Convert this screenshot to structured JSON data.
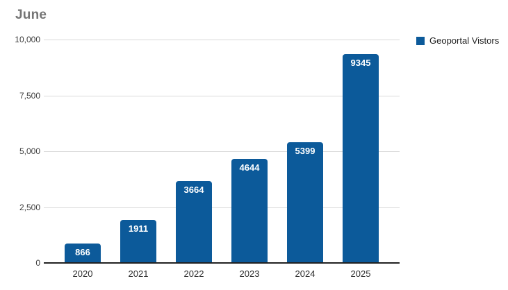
{
  "chart": {
    "title": "June",
    "legend": {
      "label": "Geoportal Vistors",
      "swatch_color": "#0c5a9a"
    }
  },
  "chart_data": {
    "type": "bar",
    "title": "June",
    "categories": [
      "2020",
      "2021",
      "2022",
      "2023",
      "2024",
      "2025"
    ],
    "series": [
      {
        "name": "Geoportal Vistors",
        "values": [
          866,
          1911,
          3664,
          4644,
          5399,
          9345
        ]
      }
    ],
    "data_labels": [
      "866",
      "1911",
      "3664",
      "4644",
      "5399",
      "9345"
    ],
    "xlabel": "",
    "ylabel": "",
    "ylim": [
      0,
      10000
    ],
    "yticks": [
      0,
      2500,
      5000,
      7500,
      10000
    ],
    "ytick_labels": [
      "0",
      "2,500",
      "5,000",
      "7,500",
      "10,000"
    ],
    "grid": true,
    "legend_position": "top-right",
    "colors": {
      "bar": "#0c5a9a",
      "gridline": "#d9d9d9",
      "axis_line": "#212121",
      "title_text": "#757575",
      "tick_text": "#3c3c3c",
      "value_label_text": "#ffffff"
    }
  }
}
